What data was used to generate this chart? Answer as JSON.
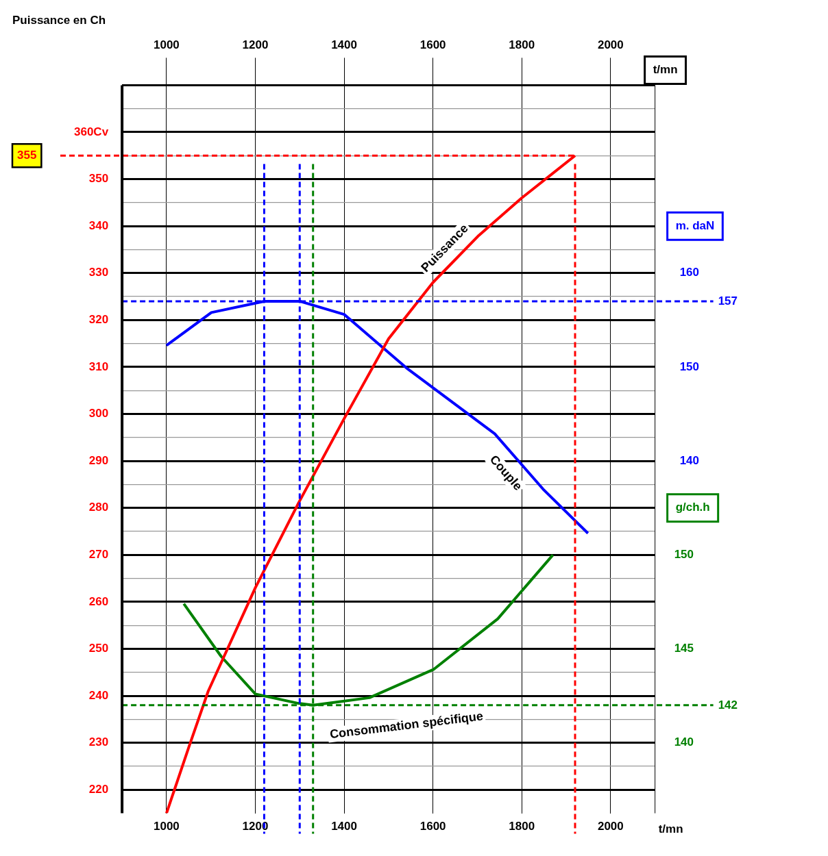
{
  "chart_data": {
    "type": "line",
    "xlabel": "t/mn",
    "x2label": "t/mn",
    "ylabel": "Puissance en Ch",
    "y2label": "m. daN",
    "y3label": "g/ch.h",
    "xlim": [
      900,
      2100
    ],
    "xticks": [
      1000,
      1200,
      1400,
      1600,
      1800,
      2000
    ],
    "x2lim": [
      900,
      2100
    ],
    "x2ticks": [
      1000,
      1200,
      1400,
      1600,
      1800,
      2000
    ],
    "ylim": [
      215,
      370
    ],
    "yticks": [
      220,
      {
        "value": 225,
        "label": null
      },
      230,
      {
        "value": 235,
        "label": null
      },
      240,
      {
        "value": 245,
        "label": null
      },
      250,
      {
        "value": 255,
        "label": null
      },
      260,
      {
        "value": 265,
        "label": null
      },
      270,
      {
        "value": 275,
        "label": null
      },
      280,
      {
        "value": 285,
        "label": null
      },
      290,
      {
        "value": 295,
        "label": null
      },
      300,
      {
        "value": 305,
        "label": null
      },
      310,
      {
        "value": 315,
        "label": null
      },
      320,
      {
        "value": 325,
        "label": null
      },
      330,
      {
        "value": 335,
        "label": null
      },
      340,
      {
        "value": 345,
        "label": null
      },
      350,
      {
        "value": 355,
        "label": null
      },
      {
        "value": 360,
        "label": "360Cv"
      },
      {
        "value": 365,
        "label": null
      },
      {
        "value": 370,
        "label": null
      }
    ],
    "y2lim": [
      102.5,
      180
    ],
    "y2ticks": [
      140,
      150,
      160
    ],
    "y3lim": [
      136.25,
      175
    ],
    "y3ticks": [
      140,
      145,
      150
    ],
    "grid": true,
    "legend": false,
    "marker": "none",
    "series": [
      {
        "name": "Puissance",
        "color": "#ff0000",
        "x": [
          1000,
          1050,
          1094,
          1200,
          1297,
          1400,
          1500,
          1600,
          1703,
          1800,
          1920
        ],
        "values": [
          215,
          229,
          241,
          263,
          281,
          299,
          316,
          328,
          338,
          346,
          355
        ]
      },
      {
        "name": "Couple",
        "axis": "y2",
        "color": "#0000ff",
        "x": [
          1000,
          1101,
          1220,
          1300,
          1400,
          1543,
          1739,
          1848,
          1949
        ],
        "values": [
          152.3,
          155.8,
          157,
          157,
          155.6,
          149.8,
          142.9,
          137,
          132.3
        ]
      },
      {
        "name": "Consommation spécifique",
        "axis": "y3",
        "color": "#008000",
        "x": [
          1039,
          1123,
          1200,
          1297,
          1330,
          1457,
          1601,
          1746,
          1870
        ],
        "values": [
          147.4,
          144.6,
          142.6,
          142.1,
          142,
          142.4,
          143.9,
          146.6,
          150
        ]
      }
    ],
    "ref_lines": [
      {
        "axis": "y",
        "value": 355,
        "label": "355",
        "color": "#ff0000",
        "line_style": "dashed"
      },
      {
        "axis": "y2",
        "value": 157,
        "label": "157",
        "color": "#0000ff",
        "line_style": "dashed"
      },
      {
        "axis": "y3",
        "value": 142,
        "label": "142",
        "color": "#008000",
        "line_style": "dashed"
      },
      {
        "axis": "x",
        "value": 1920,
        "color": "#ff0000",
        "line_style": "dashed"
      },
      {
        "axis": "x",
        "value": 1220,
        "color": "#0000ff",
        "line_style": "dashed"
      },
      {
        "axis": "x",
        "value": 1300,
        "color": "#0000ff",
        "line_style": "dashed"
      },
      {
        "axis": "x",
        "value": 1330,
        "color": "#008000",
        "line_style": "dashed"
      }
    ]
  }
}
